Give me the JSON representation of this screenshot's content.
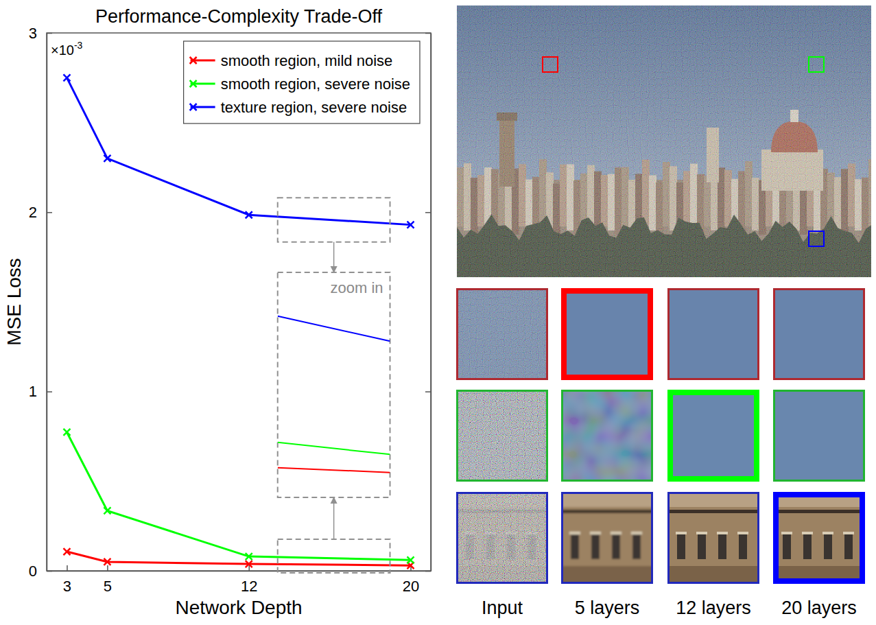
{
  "chart_data": {
    "type": "line",
    "title": "Performance-Complexity Trade-Off",
    "x_label": "Network Depth",
    "y_label": "MSE Loss",
    "y_scale_label": {
      "base": "×10",
      "exponent": "-3"
    },
    "annotation": "zoom in",
    "x": [
      3,
      5,
      12,
      20
    ],
    "series": [
      {
        "name": "smooth region, mild noise",
        "color": "#ff0000",
        "marker": "x",
        "values": [
          0.107,
          0.05,
          0.038,
          0.03
        ]
      },
      {
        "name": "smooth region, severe noise",
        "color": "#00ff00",
        "marker": "x",
        "values": [
          0.773,
          0.335,
          0.08,
          0.06
        ]
      },
      {
        "name": "texture region, severe noise",
        "color": "#0000ff",
        "marker": "x",
        "values": [
          2.75,
          2.3,
          1.985,
          1.93
        ]
      }
    ],
    "xlim": [
      2,
      21
    ],
    "ylim": [
      0,
      3
    ],
    "xticks": [
      3,
      5,
      12,
      20
    ],
    "yticks": [
      0,
      1,
      2,
      3
    ],
    "legend": "top-right"
  },
  "image_panel": {
    "column_labels": [
      "Input",
      "5 layers",
      "12 layers",
      "20 layers"
    ],
    "rows": [
      {
        "color": "#ff0000",
        "highlight": 1
      },
      {
        "color": "#00ff00",
        "highlight": 2
      },
      {
        "color": "#0000ff",
        "highlight": 3
      }
    ]
  }
}
